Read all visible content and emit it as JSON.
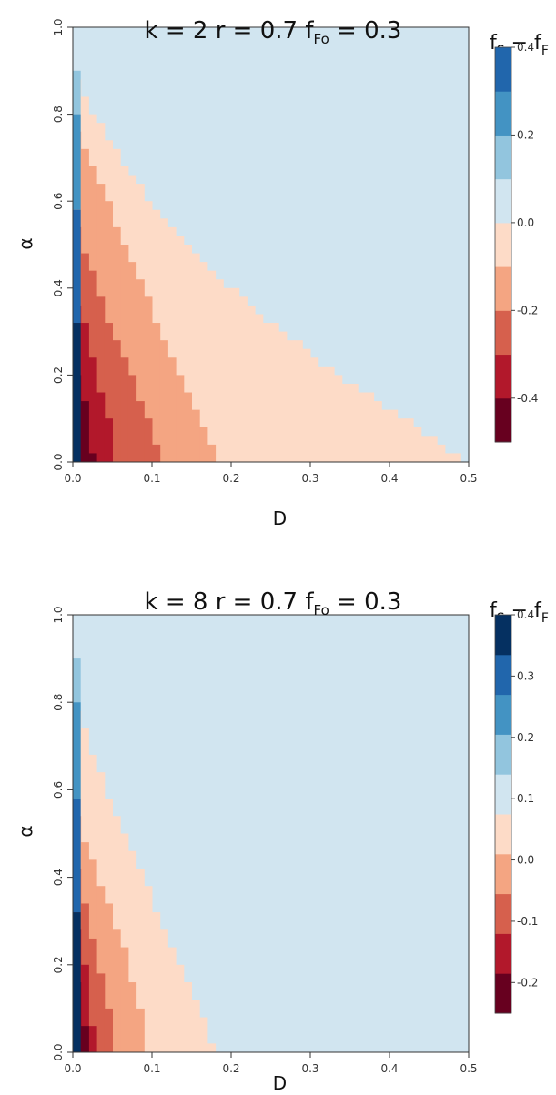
{
  "colors": {
    "scale": [
      "#67001F",
      "#B2182B",
      "#D6604D",
      "#F4A582",
      "#FDDBC7",
      "#D1E5F0",
      "#92C5DE",
      "#4393C3",
      "#2166AC",
      "#053061"
    ],
    "background_region": "#D1E5F0",
    "axis": "#333333"
  },
  "chart_data": [
    {
      "type": "heatmap",
      "title": {
        "pre": "k = 2  r = 0.7  f",
        "sub": "Fo",
        "post": " = 0.3"
      },
      "xlabel": "D",
      "ylabel": "α",
      "xlim": [
        0,
        0.5
      ],
      "ylim": [
        0,
        1.0
      ],
      "x_ticks": [
        0.0,
        0.1,
        0.2,
        0.3,
        0.4,
        0.5
      ],
      "x_tick_labels": [
        "0.0",
        "0.1",
        "0.2",
        "0.3",
        "0.4",
        "0.5"
      ],
      "y_ticks": [
        0.0,
        0.2,
        0.4,
        0.6,
        0.8,
        1.0
      ],
      "y_tick_labels": [
        "0.0",
        "0.2",
        "0.4",
        "0.6",
        "0.8",
        "1.0"
      ],
      "grid": false,
      "grid_resolution": 0.01,
      "background_class": 5,
      "zero_boundary": [
        [
          0.0,
          0.9
        ],
        [
          0.01,
          0.86
        ],
        [
          0.02,
          0.82
        ],
        [
          0.03,
          0.79
        ],
        [
          0.04,
          0.76
        ],
        [
          0.05,
          0.73
        ],
        [
          0.06,
          0.7
        ],
        [
          0.07,
          0.67
        ],
        [
          0.08,
          0.64
        ],
        [
          0.09,
          0.62
        ],
        [
          0.1,
          0.59
        ],
        [
          0.12,
          0.55
        ],
        [
          0.15,
          0.49
        ],
        [
          0.2,
          0.4
        ],
        [
          0.25,
          0.32
        ],
        [
          0.3,
          0.25
        ],
        [
          0.35,
          0.18
        ],
        [
          0.4,
          0.12
        ],
        [
          0.45,
          0.06
        ],
        [
          0.5,
          0.0
        ]
      ],
      "regions": [
        {
          "class": 4,
          "boundary": [
            [
              0.0,
              0.9
            ],
            [
              0.01,
              0.86
            ],
            [
              0.02,
              0.82
            ],
            [
              0.03,
              0.79
            ],
            [
              0.04,
              0.76
            ],
            [
              0.05,
              0.73
            ],
            [
              0.06,
              0.7
            ],
            [
              0.07,
              0.67
            ],
            [
              0.08,
              0.64
            ],
            [
              0.09,
              0.62
            ],
            [
              0.1,
              0.59
            ],
            [
              0.12,
              0.55
            ],
            [
              0.15,
              0.49
            ],
            [
              0.2,
              0.4
            ],
            [
              0.25,
              0.32
            ],
            [
              0.3,
              0.25
            ],
            [
              0.35,
              0.18
            ],
            [
              0.4,
              0.12
            ],
            [
              0.45,
              0.06
            ],
            [
              0.5,
              0.0
            ]
          ]
        },
        {
          "class": 3,
          "boundary": [
            [
              0.0,
              0.78
            ],
            [
              0.02,
              0.7
            ],
            [
              0.04,
              0.62
            ],
            [
              0.06,
              0.52
            ],
            [
              0.08,
              0.43
            ],
            [
              0.1,
              0.35
            ],
            [
              0.12,
              0.27
            ],
            [
              0.14,
              0.18
            ],
            [
              0.16,
              0.1
            ],
            [
              0.18,
              0.02
            ],
            [
              0.185,
              0.0
            ]
          ]
        },
        {
          "class": 2,
          "boundary": [
            [
              0.0,
              0.56
            ],
            [
              0.02,
              0.46
            ],
            [
              0.04,
              0.35
            ],
            [
              0.06,
              0.26
            ],
            [
              0.08,
              0.17
            ],
            [
              0.09,
              0.12
            ],
            [
              0.1,
              0.06
            ],
            [
              0.11,
              0.01
            ],
            [
              0.115,
              0.0
            ]
          ]
        },
        {
          "class": 1,
          "boundary": [
            [
              0.0,
              0.36
            ],
            [
              0.01,
              0.34
            ],
            [
              0.02,
              0.28
            ],
            [
              0.03,
              0.2
            ],
            [
              0.04,
              0.13
            ],
            [
              0.05,
              0.05
            ],
            [
              0.055,
              0.0
            ]
          ]
        },
        {
          "class": 0,
          "boundary": [
            [
              0.0,
              0.22
            ],
            [
              0.01,
              0.18
            ],
            [
              0.02,
              0.1
            ],
            [
              0.025,
              0.02
            ],
            [
              0.03,
              0.0
            ]
          ]
        },
        {
          "class": 6,
          "x_range": [
            0.0,
            0.01
          ],
          "y_range": [
            0.8,
            0.9
          ]
        },
        {
          "class": 7,
          "x_range": [
            0.0,
            0.01
          ],
          "y_range": [
            0.58,
            0.8
          ]
        },
        {
          "class": 8,
          "x_range": [
            0.0,
            0.01
          ],
          "y_range": [
            0.32,
            0.58
          ]
        },
        {
          "class": 9,
          "x_range": [
            0.0,
            0.01
          ],
          "y_range": [
            0.0,
            0.32
          ]
        }
      ],
      "legend": {
        "title": {
          "pre": "f",
          "sub1": "S",
          "mid": " − f",
          "sub2": "F"
        },
        "placement": "right",
        "min": -0.5,
        "max": 0.4,
        "ticks": [
          0.4,
          0.2,
          0.0,
          -0.2,
          -0.4
        ],
        "tick_labels": [
          "0.4",
          "0.2",
          "0.0",
          "-0.2",
          "-0.4"
        ],
        "colors": [
          "#67001F",
          "#B2182B",
          "#D6604D",
          "#F4A582",
          "#FDDBC7",
          "#D1E5F0",
          "#92C5DE",
          "#4393C3",
          "#2166AC"
        ]
      }
    },
    {
      "type": "heatmap",
      "title": {
        "pre": "k = 8  r = 0.7  f",
        "sub": "Fo",
        "post": " = 0.3"
      },
      "xlabel": "D",
      "ylabel": "α",
      "xlim": [
        0,
        0.5
      ],
      "ylim": [
        0,
        1.0
      ],
      "x_ticks": [
        0.0,
        0.1,
        0.2,
        0.3,
        0.4,
        0.5
      ],
      "x_tick_labels": [
        "0.0",
        "0.1",
        "0.2",
        "0.3",
        "0.4",
        "0.5"
      ],
      "y_ticks": [
        0.0,
        0.2,
        0.4,
        0.6,
        0.8,
        1.0
      ],
      "y_tick_labels": [
        "0.0",
        "0.2",
        "0.4",
        "0.6",
        "0.8",
        "1.0"
      ],
      "grid": false,
      "grid_resolution": 0.01,
      "background_class": 5,
      "zero_boundary": [
        [
          0.0,
          0.78
        ],
        [
          0.01,
          0.76
        ],
        [
          0.02,
          0.7
        ],
        [
          0.04,
          0.61
        ],
        [
          0.06,
          0.52
        ],
        [
          0.08,
          0.44
        ],
        [
          0.1,
          0.35
        ],
        [
          0.12,
          0.27
        ],
        [
          0.14,
          0.18
        ],
        [
          0.16,
          0.1
        ],
        [
          0.175,
          0.02
        ],
        [
          0.18,
          0.0
        ]
      ],
      "regions": [
        {
          "class": 4,
          "boundary": [
            [
              0.0,
              0.78
            ],
            [
              0.01,
              0.76
            ],
            [
              0.02,
              0.7
            ],
            [
              0.04,
              0.61
            ],
            [
              0.06,
              0.52
            ],
            [
              0.08,
              0.44
            ],
            [
              0.1,
              0.35
            ],
            [
              0.12,
              0.27
            ],
            [
              0.14,
              0.18
            ],
            [
              0.16,
              0.1
            ],
            [
              0.175,
              0.02
            ],
            [
              0.18,
              0.0
            ]
          ]
        },
        {
          "class": 3,
          "boundary": [
            [
              0.0,
              0.56
            ],
            [
              0.02,
              0.46
            ],
            [
              0.04,
              0.36
            ],
            [
              0.06,
              0.26
            ],
            [
              0.07,
              0.2
            ],
            [
              0.08,
              0.13
            ],
            [
              0.09,
              0.06
            ],
            [
              0.095,
              0.0
            ]
          ]
        },
        {
          "class": 2,
          "boundary": [
            [
              0.0,
              0.44
            ],
            [
              0.01,
              0.38
            ],
            [
              0.02,
              0.3
            ],
            [
              0.03,
              0.22
            ],
            [
              0.04,
              0.14
            ],
            [
              0.05,
              0.07
            ],
            [
              0.055,
              0.0
            ]
          ]
        },
        {
          "class": 1,
          "boundary": [
            [
              0.0,
              0.3
            ],
            [
              0.01,
              0.26
            ],
            [
              0.02,
              0.14
            ],
            [
              0.025,
              0.05
            ],
            [
              0.03,
              0.0
            ]
          ]
        },
        {
          "class": 0,
          "boundary": [
            [
              0.0,
              0.18
            ],
            [
              0.01,
              0.14
            ],
            [
              0.015,
              0.05
            ],
            [
              0.02,
              0.0
            ]
          ]
        },
        {
          "class": 6,
          "x_range": [
            0.0,
            0.01
          ],
          "y_range": [
            0.8,
            0.9
          ]
        },
        {
          "class": 7,
          "x_range": [
            0.0,
            0.01
          ],
          "y_range": [
            0.58,
            0.8
          ]
        },
        {
          "class": 8,
          "x_range": [
            0.0,
            0.01
          ],
          "y_range": [
            0.32,
            0.58
          ]
        },
        {
          "class": 9,
          "x_range": [
            0.0,
            0.01
          ],
          "y_range": [
            0.0,
            0.32
          ]
        }
      ],
      "legend": {
        "title": {
          "pre": "f",
          "sub1": "S",
          "mid": " − f",
          "sub2": "F"
        },
        "placement": "right",
        "min": -0.25,
        "max": 0.4,
        "ticks": [
          0.4,
          0.3,
          0.2,
          0.1,
          0.0,
          -0.1,
          -0.2
        ],
        "tick_labels": [
          "0.4",
          "0.3",
          "0.2",
          "0.1",
          "0.0",
          "-0.1",
          "-0.2"
        ],
        "colors": [
          "#67001F",
          "#B2182B",
          "#D6604D",
          "#F4A582",
          "#FDDBC7",
          "#D1E5F0",
          "#92C5DE",
          "#4393C3",
          "#2166AC",
          "#053061"
        ]
      }
    }
  ]
}
